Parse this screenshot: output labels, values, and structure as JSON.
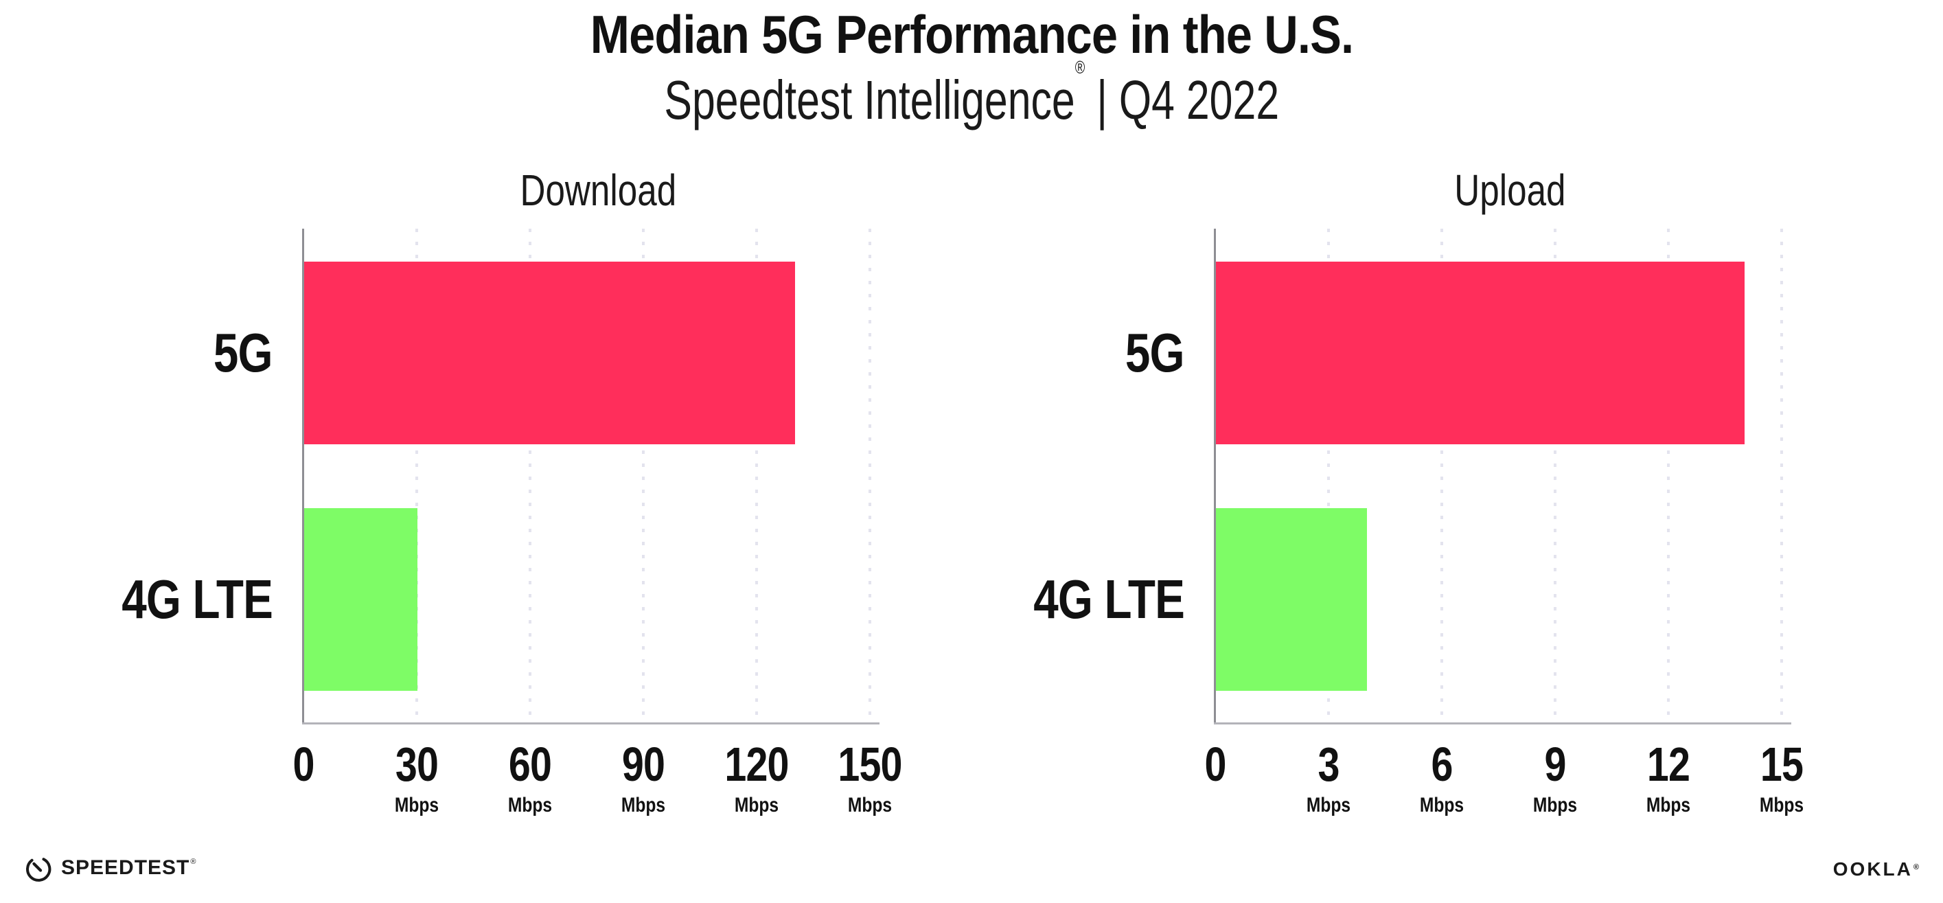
{
  "header": {
    "title": "Median 5G Performance in the U.S.",
    "subtitle_brand": "Speedtest Intelligence",
    "subtitle_reg": "®",
    "subtitle_sep": " | ",
    "subtitle_period": "Q4 2022"
  },
  "chart_data": [
    {
      "type": "bar",
      "orientation": "horizontal",
      "title": "Download",
      "categories": [
        "5G",
        "4G LTE"
      ],
      "values": [
        130,
        30
      ],
      "unit": "Mbps",
      "xlim": [
        0,
        150
      ],
      "xticks": [
        0,
        30,
        60,
        90,
        120,
        150
      ],
      "bar_colors": [
        "#ff2e5b",
        "#7efc66"
      ],
      "grid": "dotted-vertical-gridlines",
      "legend": "none"
    },
    {
      "type": "bar",
      "orientation": "horizontal",
      "title": "Upload",
      "categories": [
        "5G",
        "4G LTE"
      ],
      "values": [
        14,
        4
      ],
      "unit": "Mbps",
      "xlim": [
        0,
        15
      ],
      "xticks": [
        0,
        3,
        6,
        9,
        12,
        15
      ],
      "bar_colors": [
        "#ff2e5b",
        "#7efc66"
      ],
      "grid": "dotted-vertical-gridlines",
      "legend": "none"
    }
  ],
  "footer": {
    "speedtest_label": "SPEEDTEST",
    "speedtest_reg": "®",
    "ookla_label": "OOKLA",
    "ookla_reg": "®"
  },
  "colors": {
    "bar_5g": "#ff2e5b",
    "bar_4g_lte": "#7efc66",
    "text": "#111111",
    "gridline": "#e3e3ee",
    "x_axis_line": "#b3b3b9",
    "y_axis_line": "#8e8e94",
    "background": "#ffffff"
  }
}
